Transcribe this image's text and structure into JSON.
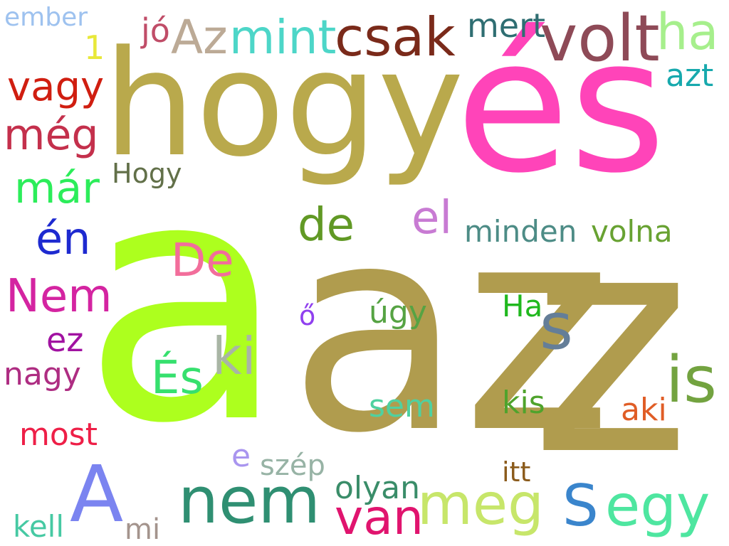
{
  "words": [
    {
      "text": "a",
      "color": "#adff1e"
    },
    {
      "text": "az",
      "color": "#b09c4e"
    },
    {
      "text": "és",
      "color": "#ff44b9"
    },
    {
      "text": "hogy",
      "color": "#b9a94c"
    },
    {
      "text": "z",
      "color": "#b09c4e"
    },
    {
      "text": "volt",
      "color": "#8e4a57"
    },
    {
      "text": "csak",
      "color": "#7a2a1a"
    },
    {
      "text": "mint",
      "color": "#4dd6c8"
    },
    {
      "text": "Az",
      "color": "#bcaa96"
    },
    {
      "text": "ember",
      "color": "#9ec2ef"
    },
    {
      "text": "jó",
      "color": "#c04d68"
    },
    {
      "text": "1",
      "color": "#e8e83a"
    },
    {
      "text": "mert",
      "color": "#2f6e72"
    },
    {
      "text": "ha",
      "color": "#a6ef8c"
    },
    {
      "text": "azt",
      "color": "#17a9ad"
    },
    {
      "text": "vagy",
      "color": "#d01e10"
    },
    {
      "text": "még",
      "color": "#c4304c"
    },
    {
      "text": "Hogy",
      "color": "#627049"
    },
    {
      "text": "már",
      "color": "#2ced5a"
    },
    {
      "text": "el",
      "color": "#c87bd3"
    },
    {
      "text": "de",
      "color": "#619925"
    },
    {
      "text": "minden",
      "color": "#4d8c86"
    },
    {
      "text": "volna",
      "color": "#68a232"
    },
    {
      "text": "én",
      "color": "#1e2ad0"
    },
    {
      "text": "De",
      "color": "#f26e9b"
    },
    {
      "text": "Nem",
      "color": "#d424a1"
    },
    {
      "text": "ő",
      "color": "#9040ef"
    },
    {
      "text": "úgy",
      "color": "#56a343"
    },
    {
      "text": "Ha",
      "color": "#20b81e"
    },
    {
      "text": "s",
      "color": "#647e98"
    },
    {
      "text": "ez",
      "color": "#a112a1"
    },
    {
      "text": "ki",
      "color": "#a9b5a5"
    },
    {
      "text": "És",
      "color": "#36e06e"
    },
    {
      "text": "nagy",
      "color": "#ae2d82"
    },
    {
      "text": "is",
      "color": "#73a340"
    },
    {
      "text": "kis",
      "color": "#4fa32c"
    },
    {
      "text": "sem",
      "color": "#4fd1a0"
    },
    {
      "text": "aki",
      "color": "#e05d26"
    },
    {
      "text": "most",
      "color": "#ee1f47"
    },
    {
      "text": "e",
      "color": "#a995ef"
    },
    {
      "text": "szép",
      "color": "#97b3a5"
    },
    {
      "text": "itt",
      "color": "#8b5b1c"
    },
    {
      "text": "A",
      "color": "#7b84f0"
    },
    {
      "text": "nem",
      "color": "#2f8f72"
    },
    {
      "text": "olyan",
      "color": "#3a8d69"
    },
    {
      "text": "meg",
      "color": "#c7e66a"
    },
    {
      "text": "S",
      "color": "#3a85cc"
    },
    {
      "text": "egy",
      "color": "#4ee6a0"
    },
    {
      "text": "van",
      "color": "#e0146e"
    },
    {
      "text": "kell",
      "color": "#46c9a3"
    },
    {
      "text": "mi",
      "color": "#a4948d"
    }
  ]
}
